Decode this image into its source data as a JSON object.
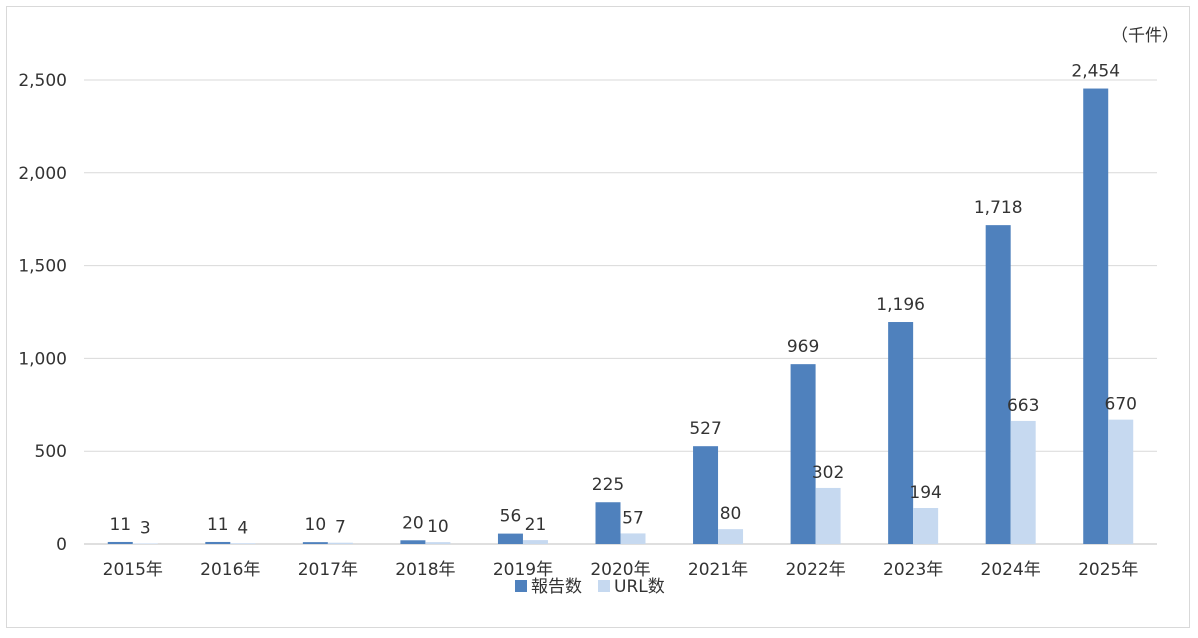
{
  "chart_data": {
    "type": "bar",
    "unit_label": "（千件）",
    "categories": [
      "2015年",
      "2016年",
      "2017年",
      "2018年",
      "2019年",
      "2020年",
      "2021年",
      "2022年",
      "2023年",
      "2024年",
      "2025年"
    ],
    "series": [
      {
        "name": "報告数",
        "color": "#4f81bd",
        "values": [
          11,
          11,
          10,
          20,
          56,
          225,
          527,
          969,
          1196,
          1718,
          2454
        ],
        "labels": [
          "11",
          "11",
          "10",
          "20",
          "56",
          "225",
          "527",
          "969",
          "1,196",
          "1,718",
          "2,454"
        ]
      },
      {
        "name": "URL数",
        "color": "#c6d9f0",
        "values": [
          3,
          4,
          7,
          10,
          21,
          57,
          80,
          302,
          194,
          663,
          670
        ],
        "labels": [
          "3",
          "4",
          "7",
          "10",
          "21",
          "57",
          "80",
          "302",
          "194",
          "663",
          "670"
        ]
      }
    ],
    "yticks": [
      0,
      500,
      1000,
      1500,
      2000,
      2500
    ],
    "ytick_labels": [
      "0",
      "500",
      "1,000",
      "1,500",
      "2,000",
      "2,500"
    ],
    "ylim": [
      0,
      2500
    ],
    "grid": true,
    "legend": "bottom"
  }
}
